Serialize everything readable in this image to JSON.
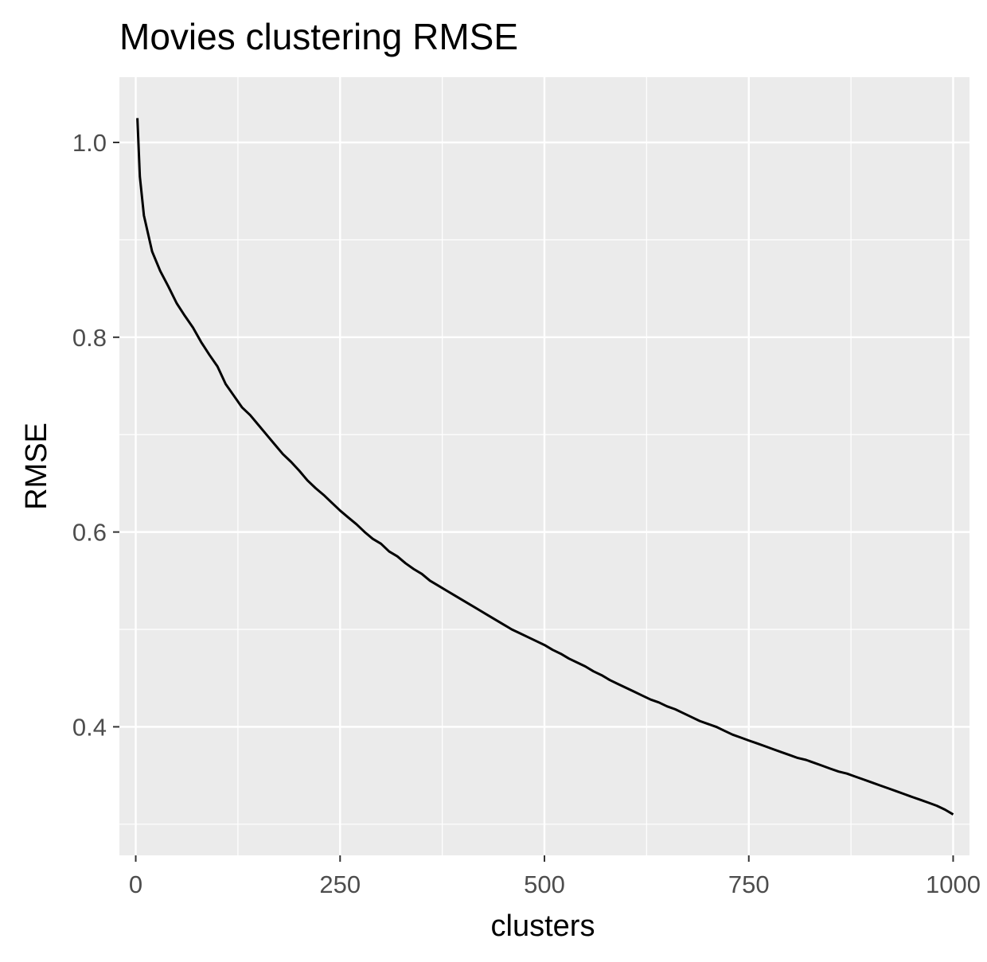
{
  "chart_data": {
    "type": "line",
    "title": "Movies clustering RMSE",
    "xlabel": "clusters",
    "ylabel": "RMSE",
    "xlim": [
      -20,
      1020
    ],
    "ylim": [
      0.268,
      1.067
    ],
    "x_ticks": [
      {
        "value": 0,
        "label": "0"
      },
      {
        "value": 250,
        "label": "250"
      },
      {
        "value": 500,
        "label": "500"
      },
      {
        "value": 750,
        "label": "750"
      },
      {
        "value": 1000,
        "label": "1000"
      }
    ],
    "y_ticks": [
      {
        "value": 0.4,
        "label": "0.4"
      },
      {
        "value": 0.6,
        "label": "0.6"
      },
      {
        "value": 0.8,
        "label": "0.8"
      },
      {
        "value": 1.0,
        "label": "1.0"
      }
    ],
    "x_minor": [
      125,
      375,
      625,
      875
    ],
    "y_minor": [
      0.3,
      0.5,
      0.7,
      0.9
    ],
    "grid": true,
    "background": "#ebebeb",
    "grid_color": "#ffffff",
    "line_color": "#000000",
    "series": [
      {
        "x": [
          2,
          5,
          10,
          20,
          30,
          40,
          50,
          60,
          70,
          80,
          90,
          100,
          110,
          120,
          130,
          140,
          150,
          160,
          170,
          180,
          190,
          200,
          210,
          220,
          230,
          240,
          250,
          260,
          270,
          280,
          290,
          300,
          310,
          320,
          330,
          340,
          350,
          360,
          370,
          380,
          390,
          400,
          410,
          420,
          430,
          440,
          450,
          460,
          470,
          480,
          490,
          500,
          510,
          520,
          530,
          540,
          550,
          560,
          570,
          580,
          590,
          600,
          610,
          620,
          630,
          640,
          650,
          660,
          670,
          680,
          690,
          700,
          710,
          720,
          730,
          740,
          750,
          760,
          770,
          780,
          790,
          800,
          810,
          820,
          830,
          840,
          850,
          860,
          870,
          880,
          890,
          900,
          910,
          920,
          930,
          940,
          950,
          960,
          970,
          980,
          990,
          1000
        ],
        "y": [
          1.025,
          0.965,
          0.925,
          0.888,
          0.868,
          0.852,
          0.835,
          0.822,
          0.81,
          0.795,
          0.782,
          0.77,
          0.752,
          0.74,
          0.728,
          0.72,
          0.71,
          0.7,
          0.69,
          0.68,
          0.672,
          0.663,
          0.653,
          0.645,
          0.638,
          0.63,
          0.622,
          0.615,
          0.608,
          0.6,
          0.593,
          0.588,
          0.58,
          0.575,
          0.568,
          0.562,
          0.557,
          0.55,
          0.545,
          0.54,
          0.535,
          0.53,
          0.525,
          0.52,
          0.515,
          0.51,
          0.505,
          0.5,
          0.496,
          0.492,
          0.488,
          0.484,
          0.479,
          0.475,
          0.47,
          0.466,
          0.462,
          0.457,
          0.453,
          0.448,
          0.444,
          0.44,
          0.436,
          0.432,
          0.428,
          0.425,
          0.421,
          0.418,
          0.414,
          0.41,
          0.406,
          0.403,
          0.4,
          0.396,
          0.392,
          0.389,
          0.386,
          0.383,
          0.38,
          0.377,
          0.374,
          0.371,
          0.368,
          0.366,
          0.363,
          0.36,
          0.357,
          0.354,
          0.352,
          0.349,
          0.346,
          0.343,
          0.34,
          0.337,
          0.334,
          0.331,
          0.328,
          0.325,
          0.322,
          0.319,
          0.315,
          0.31
        ]
      }
    ]
  }
}
